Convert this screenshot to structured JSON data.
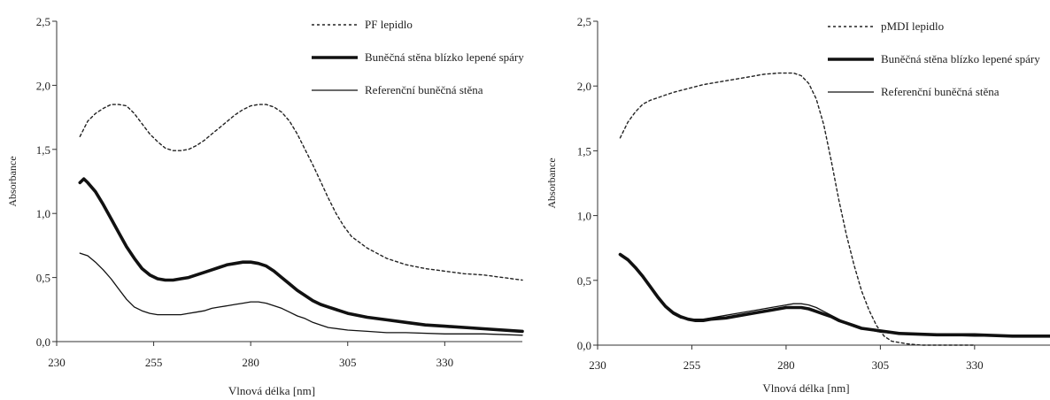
{
  "chart_data": [
    {
      "type": "line",
      "xlabel": "Vlnová délka [nm]",
      "ylabel": "Absorbance",
      "xlim": [
        230,
        350
      ],
      "ylim": [
        0,
        2.5
      ],
      "xticks": [
        230,
        255,
        280,
        305,
        330
      ],
      "xtick_labels": [
        "230",
        "255",
        "280",
        "305",
        "330"
      ],
      "yticks": [
        0,
        0.5,
        1.0,
        1.5,
        2.0,
        2.5
      ],
      "ytick_labels": [
        "0,0",
        "0,5",
        "1,0",
        "1,5",
        "2,0",
        "2,5"
      ],
      "grid": false,
      "legend_position": "top-right",
      "series": [
        {
          "name": "PF lepidlo",
          "style": "dotted",
          "color": "#222222",
          "x": [
            236,
            238,
            240,
            242,
            244,
            246,
            248,
            250,
            252,
            254,
            256,
            258,
            260,
            262,
            264,
            266,
            268,
            270,
            272,
            274,
            276,
            278,
            280,
            282,
            284,
            286,
            288,
            290,
            292,
            294,
            296,
            298,
            300,
            302,
            304,
            306,
            310,
            315,
            320,
            325,
            330,
            335,
            340,
            345,
            350
          ],
          "y": [
            1.6,
            1.72,
            1.78,
            1.82,
            1.85,
            1.85,
            1.84,
            1.78,
            1.7,
            1.62,
            1.56,
            1.51,
            1.49,
            1.49,
            1.5,
            1.53,
            1.57,
            1.62,
            1.67,
            1.72,
            1.77,
            1.81,
            1.84,
            1.85,
            1.85,
            1.83,
            1.79,
            1.72,
            1.62,
            1.5,
            1.38,
            1.25,
            1.12,
            1.0,
            0.9,
            0.82,
            0.73,
            0.65,
            0.6,
            0.57,
            0.55,
            0.53,
            0.52,
            0.5,
            0.48
          ]
        },
        {
          "name": "Buněčná stěna blízko lepené spáry",
          "style": "thick",
          "color": "#111111",
          "x": [
            236,
            237,
            238,
            240,
            242,
            244,
            246,
            248,
            250,
            252,
            254,
            256,
            258,
            260,
            262,
            264,
            266,
            268,
            270,
            272,
            274,
            276,
            278,
            280,
            282,
            284,
            286,
            288,
            290,
            292,
            294,
            296,
            298,
            300,
            305,
            310,
            315,
            320,
            325,
            330,
            340,
            350
          ],
          "y": [
            1.24,
            1.27,
            1.24,
            1.17,
            1.07,
            0.96,
            0.85,
            0.74,
            0.65,
            0.57,
            0.52,
            0.49,
            0.48,
            0.48,
            0.49,
            0.5,
            0.52,
            0.54,
            0.56,
            0.58,
            0.6,
            0.61,
            0.62,
            0.62,
            0.61,
            0.59,
            0.55,
            0.5,
            0.45,
            0.4,
            0.36,
            0.32,
            0.29,
            0.27,
            0.22,
            0.19,
            0.17,
            0.15,
            0.13,
            0.12,
            0.1,
            0.08
          ]
        },
        {
          "name": "Referenční buněčná stěna",
          "style": "thin",
          "color": "#111111",
          "x": [
            236,
            238,
            240,
            242,
            244,
            246,
            248,
            250,
            252,
            254,
            256,
            258,
            260,
            262,
            264,
            266,
            268,
            270,
            272,
            274,
            276,
            278,
            280,
            282,
            284,
            286,
            288,
            290,
            292,
            294,
            296,
            298,
            300,
            305,
            310,
            315,
            320,
            330,
            340,
            350
          ],
          "y": [
            0.69,
            0.67,
            0.62,
            0.56,
            0.49,
            0.41,
            0.33,
            0.27,
            0.24,
            0.22,
            0.21,
            0.21,
            0.21,
            0.21,
            0.22,
            0.23,
            0.24,
            0.26,
            0.27,
            0.28,
            0.29,
            0.3,
            0.31,
            0.31,
            0.3,
            0.28,
            0.26,
            0.23,
            0.2,
            0.18,
            0.15,
            0.13,
            0.11,
            0.09,
            0.08,
            0.07,
            0.07,
            0.06,
            0.06,
            0.05
          ]
        }
      ]
    },
    {
      "type": "line",
      "xlabel": "Vlnová délka [nm]",
      "ylabel": "Absorbance",
      "xlim": [
        230,
        350
      ],
      "ylim": [
        0,
        2.5
      ],
      "xticks": [
        230,
        255,
        280,
        305,
        330
      ],
      "xtick_labels": [
        "230",
        "255",
        "280",
        "305",
        "330"
      ],
      "yticks": [
        0,
        0.5,
        1.0,
        1.5,
        2.0,
        2.5
      ],
      "ytick_labels": [
        "0,0",
        "0,5",
        "1,0",
        "1,5",
        "2,0",
        "2,5"
      ],
      "grid": false,
      "legend_position": "top-right",
      "series": [
        {
          "name": "pMDI lepidlo",
          "style": "dotted",
          "color": "#222222",
          "x": [
            236,
            238,
            240,
            242,
            244,
            246,
            248,
            250,
            254,
            258,
            262,
            266,
            270,
            274,
            278,
            282,
            284,
            286,
            288,
            290,
            292,
            294,
            296,
            298,
            300,
            302,
            304,
            306,
            308,
            312,
            316,
            320,
            325,
            330
          ],
          "y": [
            1.6,
            1.72,
            1.8,
            1.86,
            1.89,
            1.91,
            1.93,
            1.95,
            1.98,
            2.01,
            2.03,
            2.05,
            2.07,
            2.09,
            2.1,
            2.1,
            2.08,
            2.02,
            1.9,
            1.7,
            1.42,
            1.12,
            0.85,
            0.62,
            0.42,
            0.27,
            0.15,
            0.07,
            0.03,
            0.01,
            0.0,
            0.0,
            0.0,
            0.0
          ]
        },
        {
          "name": "Buněčná stěna blízko lepené spáry",
          "style": "thick",
          "color": "#111111",
          "x": [
            236,
            238,
            240,
            242,
            244,
            246,
            248,
            250,
            252,
            254,
            256,
            258,
            260,
            264,
            268,
            272,
            276,
            280,
            282,
            284,
            286,
            288,
            290,
            292,
            294,
            296,
            298,
            300,
            305,
            310,
            320,
            330,
            340,
            350
          ],
          "y": [
            0.7,
            0.66,
            0.6,
            0.53,
            0.45,
            0.37,
            0.3,
            0.25,
            0.22,
            0.2,
            0.19,
            0.19,
            0.2,
            0.21,
            0.23,
            0.25,
            0.27,
            0.29,
            0.29,
            0.29,
            0.28,
            0.26,
            0.24,
            0.22,
            0.19,
            0.17,
            0.15,
            0.13,
            0.11,
            0.09,
            0.08,
            0.08,
            0.07,
            0.07
          ]
        },
        {
          "name": "Referenční buněčná stěna",
          "style": "thin",
          "color": "#111111",
          "x": [
            236,
            238,
            240,
            242,
            244,
            246,
            248,
            250,
            252,
            254,
            256,
            258,
            260,
            264,
            268,
            272,
            276,
            280,
            282,
            284,
            286,
            288,
            290,
            292,
            294,
            296,
            298,
            300,
            305,
            310,
            320,
            330,
            340,
            350
          ],
          "y": [
            0.69,
            0.65,
            0.59,
            0.52,
            0.44,
            0.36,
            0.29,
            0.24,
            0.21,
            0.2,
            0.2,
            0.2,
            0.21,
            0.23,
            0.25,
            0.27,
            0.29,
            0.31,
            0.32,
            0.32,
            0.31,
            0.29,
            0.26,
            0.23,
            0.2,
            0.17,
            0.15,
            0.13,
            0.1,
            0.09,
            0.08,
            0.07,
            0.07,
            0.07
          ]
        }
      ]
    }
  ]
}
